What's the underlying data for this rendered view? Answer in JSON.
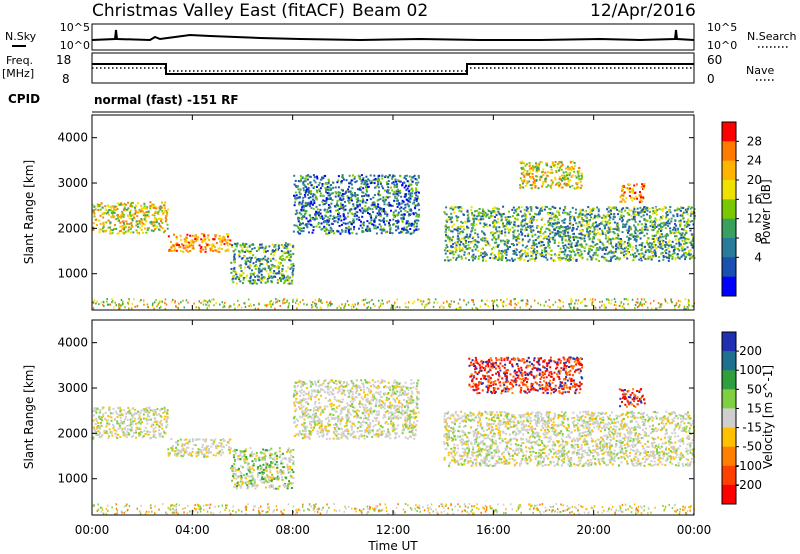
{
  "header": {
    "site": "Christmas Valley East (fitACF)",
    "beam": "Beam 02",
    "date": "12/Apr/2016"
  },
  "labels": {
    "nsky": "N.Sky",
    "nsearch": "N.Search",
    "freq": "Freq.",
    "freq_unit": "[MHz]",
    "nave": "Nave",
    "cpid": "CPID",
    "cpid_value": "normal (fast) -151 RF"
  },
  "strips": {
    "noise_left_ticks": [
      "10^5",
      "10^0"
    ],
    "noise_right_ticks": [
      "10^5",
      "10^0"
    ],
    "freq_ticks": [
      "18",
      "8"
    ],
    "nave_ticks": [
      "60",
      "0"
    ]
  },
  "chart_data": [
    {
      "type": "heatmap",
      "title": "",
      "ylabel": "Slant Range [km]",
      "ylim": [
        200,
        4500
      ],
      "yticks": [
        "4000",
        "3000",
        "2000",
        "1000"
      ],
      "ytick_values": [
        4000,
        3000,
        2000,
        1000
      ],
      "xlim": [
        "00:00",
        "24:00"
      ],
      "colorbar": {
        "label": "Power [dB]",
        "ticks": [
          "28",
          "24",
          "20",
          "16",
          "12",
          "8",
          "4"
        ],
        "colors": [
          "#ff0000",
          "#ff7a00",
          "#ffb400",
          "#f0e000",
          "#7ac800",
          "#3aa060",
          "#2a7a9a",
          "#1a50b0",
          "#0000ff"
        ]
      },
      "echo_regions": [
        {
          "t_start": "00:00",
          "t_end": "03:00",
          "range_min": 1900,
          "range_max": 2600,
          "level": "high"
        },
        {
          "t_start": "03:00",
          "t_end": "05:30",
          "range_min": 1500,
          "range_max": 1900,
          "level": "very high"
        },
        {
          "t_start": "05:30",
          "t_end": "08:00",
          "range_min": 800,
          "range_max": 1700,
          "level": "mixed"
        },
        {
          "t_start": "08:00",
          "t_end": "13:00",
          "range_min": 1900,
          "range_max": 3200,
          "level": "low"
        },
        {
          "t_start": "14:00",
          "t_end": "24:00",
          "range_min": 1300,
          "range_max": 2500,
          "level": "mixed"
        },
        {
          "t_start": "17:00",
          "t_end": "19:30",
          "range_min": 2900,
          "range_max": 3500,
          "level": "high"
        },
        {
          "t_start": "21:00",
          "t_end": "22:00",
          "range_min": 2600,
          "range_max": 3000,
          "level": "very high"
        }
      ]
    },
    {
      "type": "heatmap",
      "title": "",
      "ylabel": "Slant Range [km]",
      "ylim": [
        200,
        4500
      ],
      "yticks": [
        "4000",
        "3000",
        "2000",
        "1000"
      ],
      "ytick_values": [
        4000,
        3000,
        2000,
        1000
      ],
      "xlim": [
        "00:00",
        "24:00"
      ],
      "xticks": [
        "00:00",
        "04:00",
        "08:00",
        "12:00",
        "16:00",
        "20:00",
        "00:00"
      ],
      "xlabel": "Time UT",
      "colorbar": {
        "label": "Velocity [m s^-1]",
        "ticks": [
          "200",
          "100",
          "50",
          "15",
          "-15",
          "-50",
          "-100",
          "-200"
        ],
        "colors": [
          "#2030b0",
          "#1f6f8f",
          "#2e9e3e",
          "#7fd040",
          "#cfcfcf",
          "#ffc000",
          "#ff8000",
          "#ff4000",
          "#ff0000"
        ]
      },
      "echo_regions": [
        {
          "t_start": "00:00",
          "t_end": "03:00",
          "range_min": 1900,
          "range_max": 2600,
          "level": "ground scatter"
        },
        {
          "t_start": "03:00",
          "t_end": "05:30",
          "range_min": 1500,
          "range_max": 1900,
          "level": "ground scatter"
        },
        {
          "t_start": "05:30",
          "t_end": "08:00",
          "range_min": 800,
          "range_max": 1700,
          "level": "mixed"
        },
        {
          "t_start": "08:00",
          "t_end": "13:00",
          "range_min": 1900,
          "range_max": 3200,
          "level": "ground scatter"
        },
        {
          "t_start": "14:00",
          "t_end": "24:00",
          "range_min": 1300,
          "range_max": 2500,
          "level": "ground scatter"
        },
        {
          "t_start": "15:00",
          "t_end": "19:30",
          "range_min": 2900,
          "range_max": 3700,
          "level": "negative"
        },
        {
          "t_start": "21:00",
          "t_end": "22:00",
          "range_min": 2600,
          "range_max": 3000,
          "level": "negative"
        }
      ]
    }
  ]
}
